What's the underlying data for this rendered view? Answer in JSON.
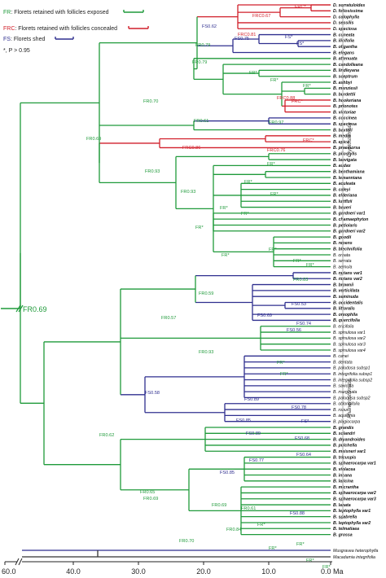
{
  "colors": {
    "FR": "#1f9a3a",
    "FRC": "#d11f2a",
    "FS": "#2f2f8f",
    "outgroup": "#333333"
  },
  "legend": [
    {
      "code": "FR",
      "text": "Florets retained with follicles exposed",
      "color": "#1f9a3a"
    },
    {
      "code": "FRC",
      "text": "Florets retained with follicles concealed",
      "color": "#d11f2a"
    },
    {
      "code": "FS",
      "text": "Florets shed",
      "color": "#2f2f8f"
    }
  ],
  "footnote": "*, P > 0.95",
  "axis": {
    "ticks": [
      "60.0",
      "40.0",
      "30.0",
      "20.0",
      "10.0",
      "0.0 Ma"
    ]
  },
  "root_label": "FR0.69",
  "clades": [
    {
      "label": "Cryptostomata"
    },
    {
      "label": "Phanerostomata"
    }
  ],
  "tips": [
    "D. serratuloides",
    "D. foliosissima",
    "D. calophylla",
    "D. sessilis",
    "D. speciosa",
    "B. cuneata",
    "B. ilicifolia",
    "B. oligantha",
    "B. elegans",
    "B. attenuata",
    "B. candolleana",
    "B. lindleyana",
    "B. sceptrum",
    "B. ashbyi",
    "B. menziesii",
    "B. burdettii",
    "B. hookeriana",
    "B. prionotes",
    "B. victoriae",
    "B. coccinea",
    "B. speciosa",
    "B. baxteri",
    "B. media",
    "B. epica",
    "B. praemorsa",
    "B. pilostylis",
    "B. laevigata",
    "B. audax",
    "B. benthamiana",
    "B. lemanniana",
    "B. aculeata",
    "B. caleyi",
    "B. elderiana",
    "B. luttflzii",
    "B. baueri",
    "B. gardneri var1",
    "B. chamaephyton",
    "B. petiolaris",
    "B. gardneri var2",
    "B. goodii",
    "B. repens",
    "B. blechnifolia",
    "B. ornata",
    "B. serrata",
    "B. aemula",
    "B. nutans var1",
    "B. nutans var2",
    "B. brownii",
    "B. verticillata",
    "B. seminuda",
    "B. occidentalis",
    "B. littoralis",
    "B. oreophila",
    "B. quercifolia",
    "B. ericifolia",
    "B. spinulosa var1",
    "B. spinulosa var2",
    "B. spinulosa var3",
    "B. spinulosa var4",
    "B. canei",
    "B. dentata",
    "B. paludosa subsp1",
    "B. integrifolia subsp1",
    "B. integrifolia subsp2",
    "B. saxicola",
    "B. marginata",
    "B. paludosa subsp2",
    "B. oblongifolia",
    "B. robur",
    "B. aquilonia",
    "B. plagiocarpa",
    "B. grandis",
    "B. solandri",
    "B. dryandroides",
    "B. pulchella",
    "B. meisneri var1",
    "B. tricuspis",
    "B. sphaerocarpa var1",
    "B. violacea",
    "B. incana",
    "B. laricina",
    "B. micrantha",
    "B. sphaerocarpa var2",
    "B. sphaerocarpa var3",
    "B. lanata",
    "B. leptophylla var1",
    "B. scabrella",
    "B. leptophylla var2",
    "B. telmatiaea",
    "B. grossa",
    "Musgravea heterophylla",
    "Macadamia integrifolia"
  ],
  "bold_tips": [
    0,
    1,
    2,
    3,
    4,
    5,
    6,
    7,
    8,
    9,
    10,
    11,
    12,
    13,
    14,
    15,
    16,
    17,
    18,
    19,
    20,
    21,
    22,
    23,
    24,
    25,
    26,
    27,
    28,
    29,
    30,
    31,
    32,
    33,
    34,
    35,
    36,
    37,
    38,
    39,
    40,
    41,
    45,
    46,
    47,
    48,
    49,
    50,
    51,
    52,
    53,
    71,
    72,
    73,
    74,
    75,
    76,
    77,
    78,
    79,
    80,
    81,
    82,
    83,
    84,
    85,
    86,
    87,
    88,
    89
  ],
  "node_labels": [
    {
      "text": "FRC0.81",
      "color": "#d11f2a"
    },
    {
      "text": "FRC0.67",
      "color": "#d11f2a"
    },
    {
      "text": "FRC*",
      "color": "#d11f2a"
    },
    {
      "text": "FS0.62",
      "color": "#2f2f8f"
    },
    {
      "text": "FS0.75",
      "color": "#2f2f8f"
    },
    {
      "text": "FS*",
      "color": "#2f2f8f"
    },
    {
      "text": "FS*",
      "color": "#2f2f8f"
    },
    {
      "text": "FR0.79",
      "color": "#1f9a3a"
    },
    {
      "text": "FR0.79",
      "color": "#1f9a3a"
    },
    {
      "text": "FR0.70",
      "color": "#1f9a3a"
    },
    {
      "text": "FR*",
      "color": "#1f9a3a"
    },
    {
      "text": "FR*",
      "color": "#1f9a3a"
    },
    {
      "text": "FR*",
      "color": "#1f9a3a"
    },
    {
      "text": "FRC0.88",
      "color": "#d11f2a"
    },
    {
      "text": "FRC*",
      "color": "#d11f2a"
    },
    {
      "text": "FR0.61",
      "color": "#1f9a3a"
    },
    {
      "text": "FR0.97",
      "color": "#1f9a3a"
    },
    {
      "text": "FR0.69",
      "color": "#1f9a3a"
    },
    {
      "text": "FRC0.86",
      "color": "#d11f2a"
    },
    {
      "text": "FRC0.76",
      "color": "#d11f2a"
    },
    {
      "text": "FRC*",
      "color": "#d11f2a"
    },
    {
      "text": "FR0.93",
      "color": "#1f9a3a"
    },
    {
      "text": "FR*",
      "color": "#1f9a3a"
    },
    {
      "text": "FR0.93",
      "color": "#1f9a3a"
    },
    {
      "text": "FR*",
      "color": "#1f9a3a"
    },
    {
      "text": "FR*",
      "color": "#1f9a3a"
    },
    {
      "text": "FR*",
      "color": "#1f9a3a"
    },
    {
      "text": "FR*",
      "color": "#1f9a3a"
    },
    {
      "text": "FR*",
      "color": "#1f9a3a"
    },
    {
      "text": "FR*",
      "color": "#1f9a3a"
    },
    {
      "text": "FR*",
      "color": "#1f9a3a"
    },
    {
      "text": "FR*",
      "color": "#1f9a3a"
    },
    {
      "text": "FR*",
      "color": "#1f9a3a"
    },
    {
      "text": "FR0.83",
      "color": "#1f9a3a"
    },
    {
      "text": "FR0.59",
      "color": "#1f9a3a"
    },
    {
      "text": "FS0.53",
      "color": "#2f2f8f"
    },
    {
      "text": "FS0.69",
      "color": "#2f2f8f"
    },
    {
      "text": "FS0.74",
      "color": "#2f2f8f"
    },
    {
      "text": "FS0.56",
      "color": "#2f2f8f"
    },
    {
      "text": "FR0.57",
      "color": "#1f9a3a"
    },
    {
      "text": "FR0.93",
      "color": "#1f9a3a"
    },
    {
      "text": "FR*",
      "color": "#1f9a3a"
    },
    {
      "text": "FR*",
      "color": "#1f9a3a"
    },
    {
      "text": "FS0.58",
      "color": "#2f2f8f"
    },
    {
      "text": "FS0.89",
      "color": "#2f2f8f"
    },
    {
      "text": "FS0.78",
      "color": "#2f2f8f"
    },
    {
      "text": "FS0.85",
      "color": "#2f2f8f"
    },
    {
      "text": "FS*",
      "color": "#2f2f8f"
    },
    {
      "text": "FS0.89",
      "color": "#2f2f8f"
    },
    {
      "text": "FS0.68",
      "color": "#2f2f8f"
    },
    {
      "text": "FS0.64",
      "color": "#2f2f8f"
    },
    {
      "text": "FS0.77",
      "color": "#2f2f8f"
    },
    {
      "text": "FS0.85",
      "color": "#2f2f8f"
    },
    {
      "text": "FR0.62",
      "color": "#1f9a3a"
    },
    {
      "text": "FR0.65",
      "color": "#1f9a3a"
    },
    {
      "text": "FR0.69",
      "color": "#1f9a3a"
    },
    {
      "text": "FR0.69",
      "color": "#1f9a3a"
    },
    {
      "text": "FR0.70",
      "color": "#1f9a3a"
    },
    {
      "text": "FR0.61",
      "color": "#1f9a3a"
    },
    {
      "text": "FR0.84",
      "color": "#1f9a3a"
    },
    {
      "text": "FS0.88",
      "color": "#2f2f8f"
    },
    {
      "text": "FR*",
      "color": "#1f9a3a"
    },
    {
      "text": "FR*",
      "color": "#1f9a3a"
    },
    {
      "text": "FR*",
      "color": "#1f9a3a"
    },
    {
      "text": "FR*",
      "color": "#1f9a3a"
    },
    {
      "text": "FR*",
      "color": "#1f9a3a"
    }
  ]
}
